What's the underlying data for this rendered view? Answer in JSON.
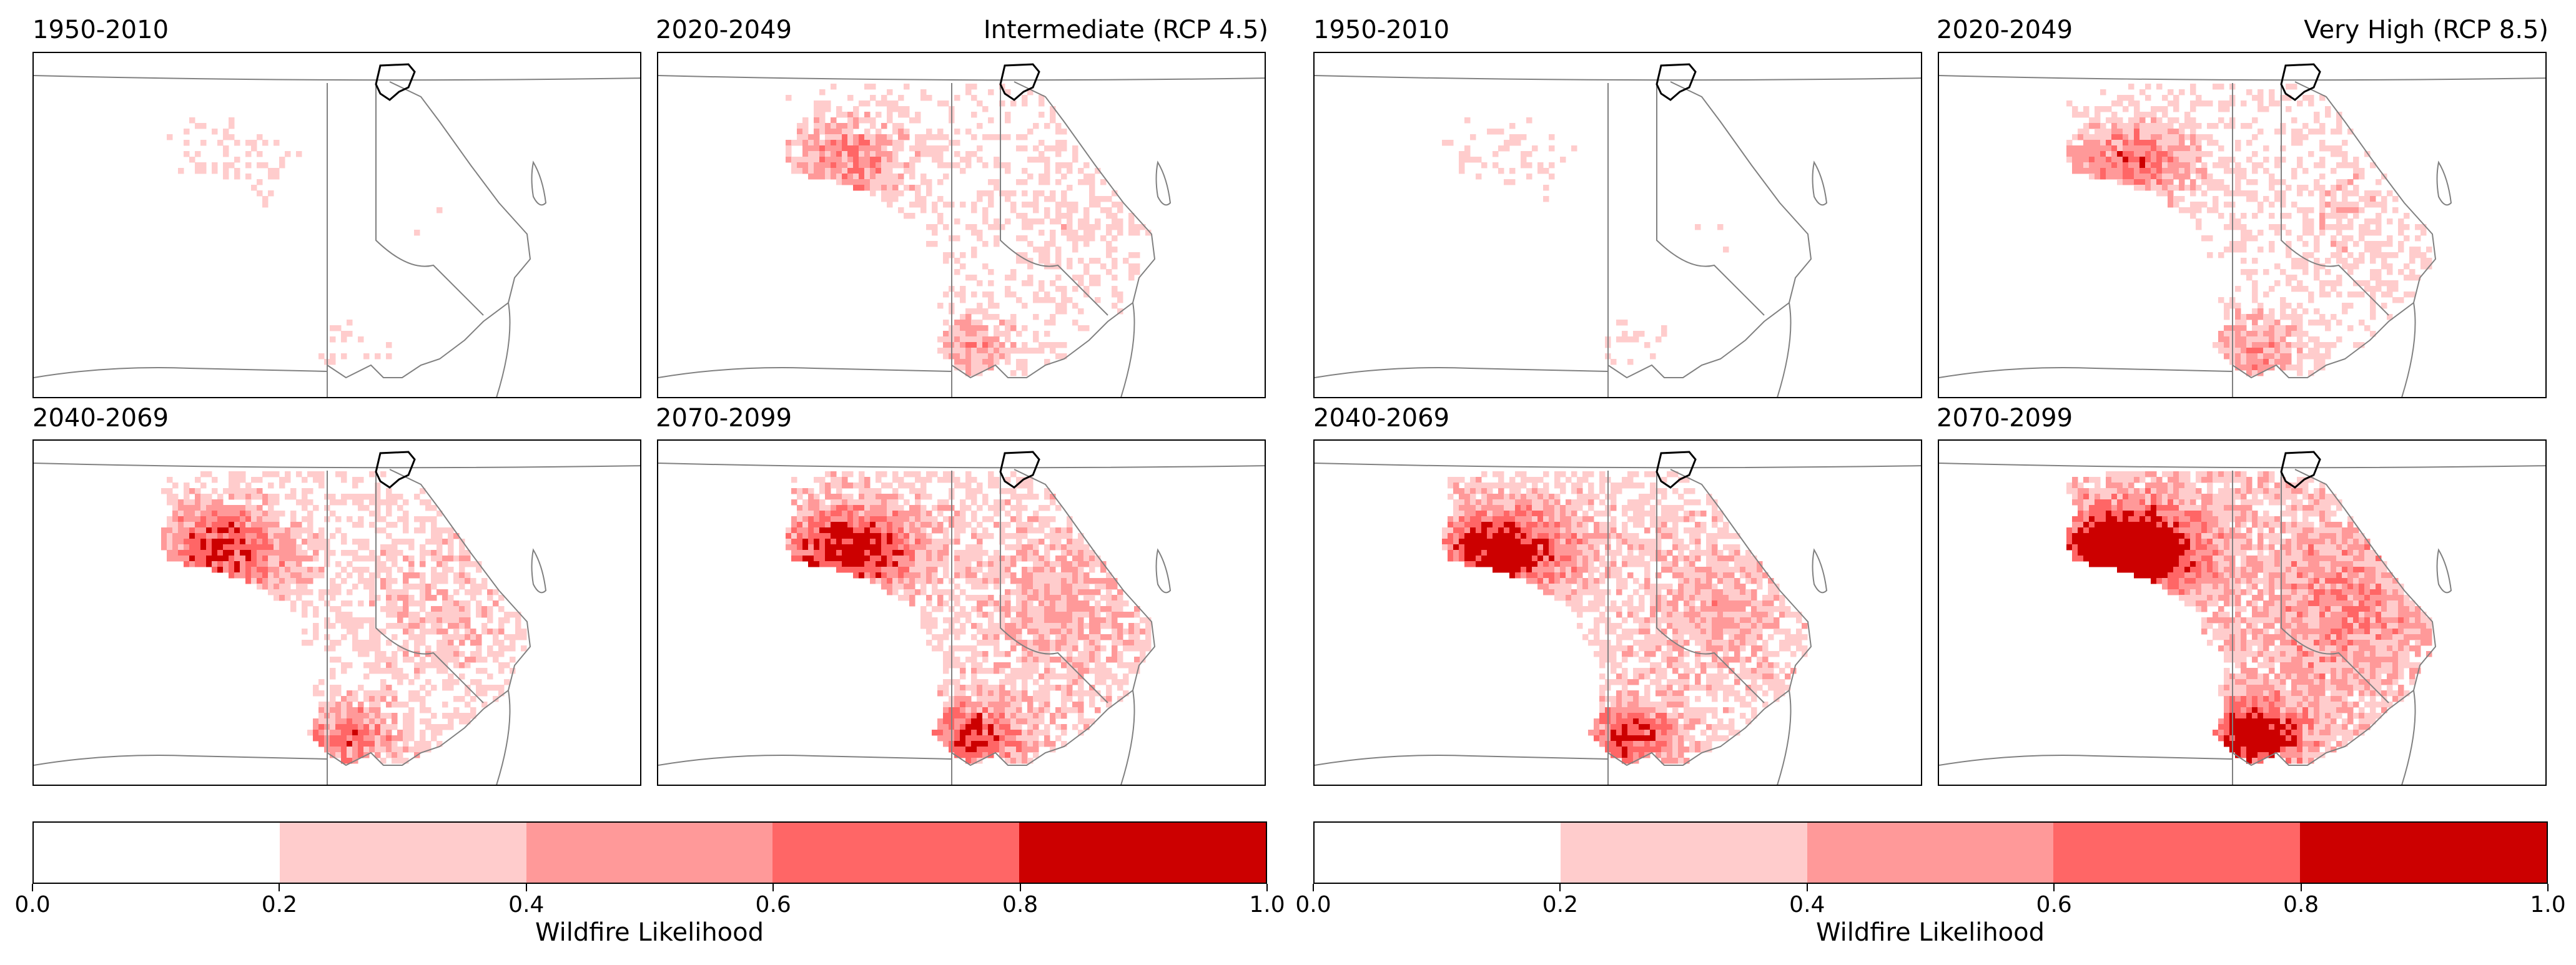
{
  "scenarios": [
    {
      "name": "Intermediate (RCP 4.5)",
      "panels": [
        {
          "period": "1950-2010",
          "likelihood_level": 0.15
        },
        {
          "period": "2020-2049",
          "likelihood_level": 0.4
        },
        {
          "period": "2040-2069",
          "likelihood_level": 0.55
        },
        {
          "period": "2070-2099",
          "likelihood_level": 0.65
        }
      ]
    },
    {
      "name": "Very High (RCP 8.5)",
      "panels": [
        {
          "period": "1950-2010",
          "likelihood_level": 0.15
        },
        {
          "period": "2020-2049",
          "likelihood_level": 0.45
        },
        {
          "period": "2040-2069",
          "likelihood_level": 0.65
        },
        {
          "period": "2070-2099",
          "likelihood_level": 0.85
        }
      ]
    }
  ],
  "colorbar": {
    "label": "Wildfire Likelihood",
    "ticks": [
      "0.0",
      "0.2",
      "0.4",
      "0.6",
      "0.8",
      "1.0"
    ],
    "colors": [
      "#ffffff",
      "#ffcccc",
      "#ff9999",
      "#ff6666",
      "#cc0000"
    ]
  },
  "map_colors": {
    "boundary": "#808080",
    "highlight_outline": "#000000"
  }
}
